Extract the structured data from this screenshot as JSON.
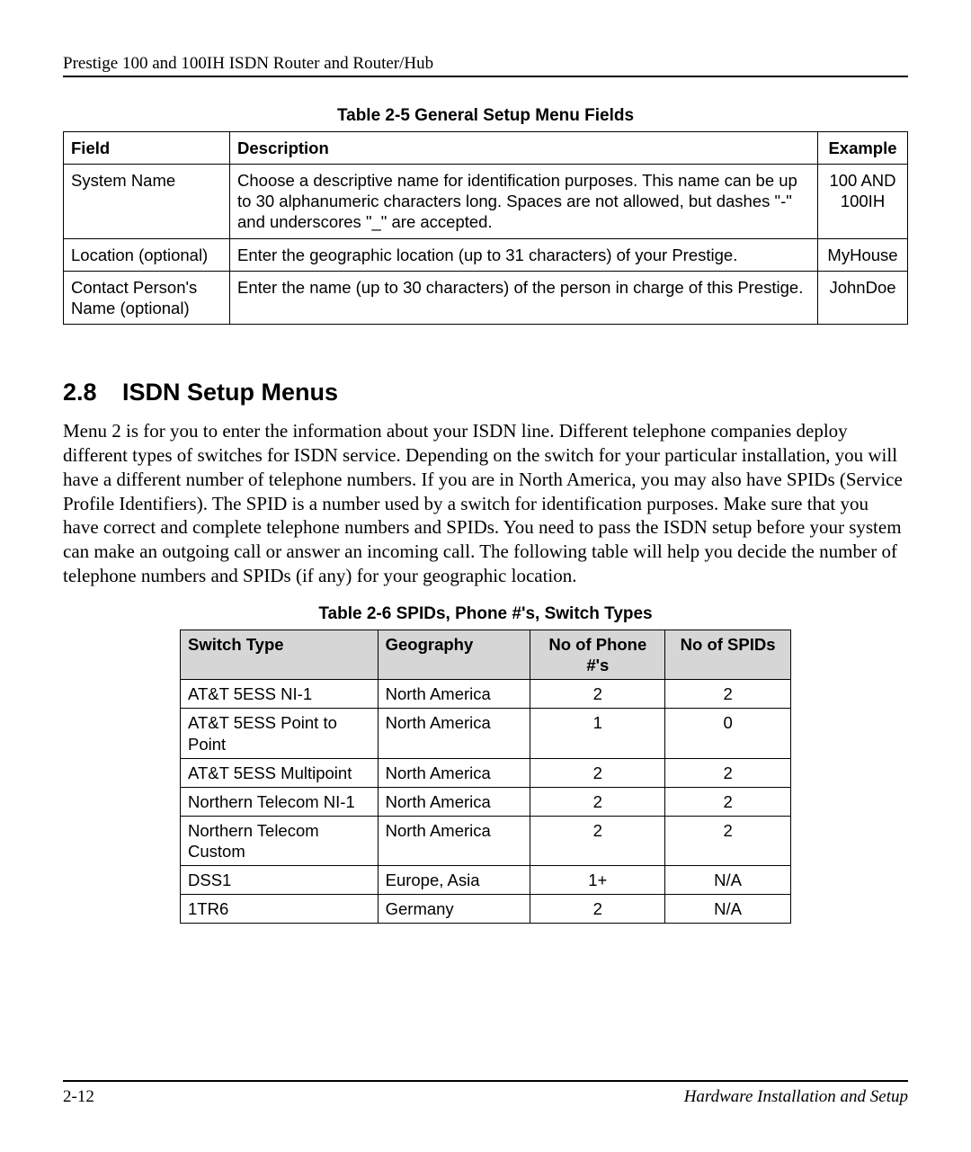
{
  "header": {
    "running_head": "Prestige 100 and 100IH ISDN Router and Router/Hub"
  },
  "table1": {
    "caption": "Table 2-5 General Setup Menu Fields",
    "headers": {
      "field": "Field",
      "description": "Description",
      "example": "Example"
    },
    "rows": [
      {
        "field": "System Name",
        "description": "Choose a descriptive name for identification purposes. This name can be up to 30 alphanumeric characters long. Spaces are not allowed, but dashes \"-\" and underscores \"_\" are accepted.",
        "example": "100 AND 100IH"
      },
      {
        "field": "Location (optional)",
        "description": "Enter the geographic location (up to 31 characters) of your Prestige.",
        "example": "MyHouse"
      },
      {
        "field": "Contact Person's Name (optional)",
        "description": "Enter the name (up to 30 characters) of the person in charge of this Prestige.",
        "example": "JohnDoe"
      }
    ]
  },
  "section": {
    "number": "2.8",
    "title": "ISDN Setup Menus",
    "body": "Menu 2 is for you to enter the information about your ISDN line. Different telephone companies deploy different types of switches for ISDN service. Depending on the switch for your particular installation, you will have a different number of telephone numbers. If you are in North America, you may also have SPIDs (Service Profile Identifiers). The SPID is a number used by a switch for identification purposes. Make sure that you have correct and complete telephone numbers and SPIDs. You need to pass the ISDN setup before your system can make an outgoing call or answer an incoming call. The following table will help you decide the number of telephone numbers and SPIDs (if any) for your geographic location."
  },
  "table2": {
    "caption": "Table 2-6 SPIDs, Phone #'s, Switch Types",
    "headers": {
      "switch": "Switch Type",
      "geo": "Geography",
      "phone": "No of Phone #'s",
      "spid": "No of SPIDs"
    },
    "rows": [
      {
        "switch": "AT&T 5ESS NI-1",
        "geo": "North America",
        "phone": "2",
        "spid": "2"
      },
      {
        "switch": "AT&T 5ESS Point to Point",
        "geo": "North America",
        "phone": "1",
        "spid": "0"
      },
      {
        "switch": "AT&T 5ESS Multipoint",
        "geo": "North America",
        "phone": "2",
        "spid": "2"
      },
      {
        "switch": "Northern Telecom NI-1",
        "geo": "North America",
        "phone": "2",
        "spid": "2"
      },
      {
        "switch": "Northern Telecom Custom",
        "geo": "North America",
        "phone": "2",
        "spid": "2"
      },
      {
        "switch": "DSS1",
        "geo": "Europe, Asia",
        "phone": "1+",
        "spid": "N/A"
      },
      {
        "switch": "1TR6",
        "geo": "Germany",
        "phone": "2",
        "spid": "N/A"
      }
    ]
  },
  "footer": {
    "page": "2-12",
    "section": "Hardware Installation and Setup"
  }
}
